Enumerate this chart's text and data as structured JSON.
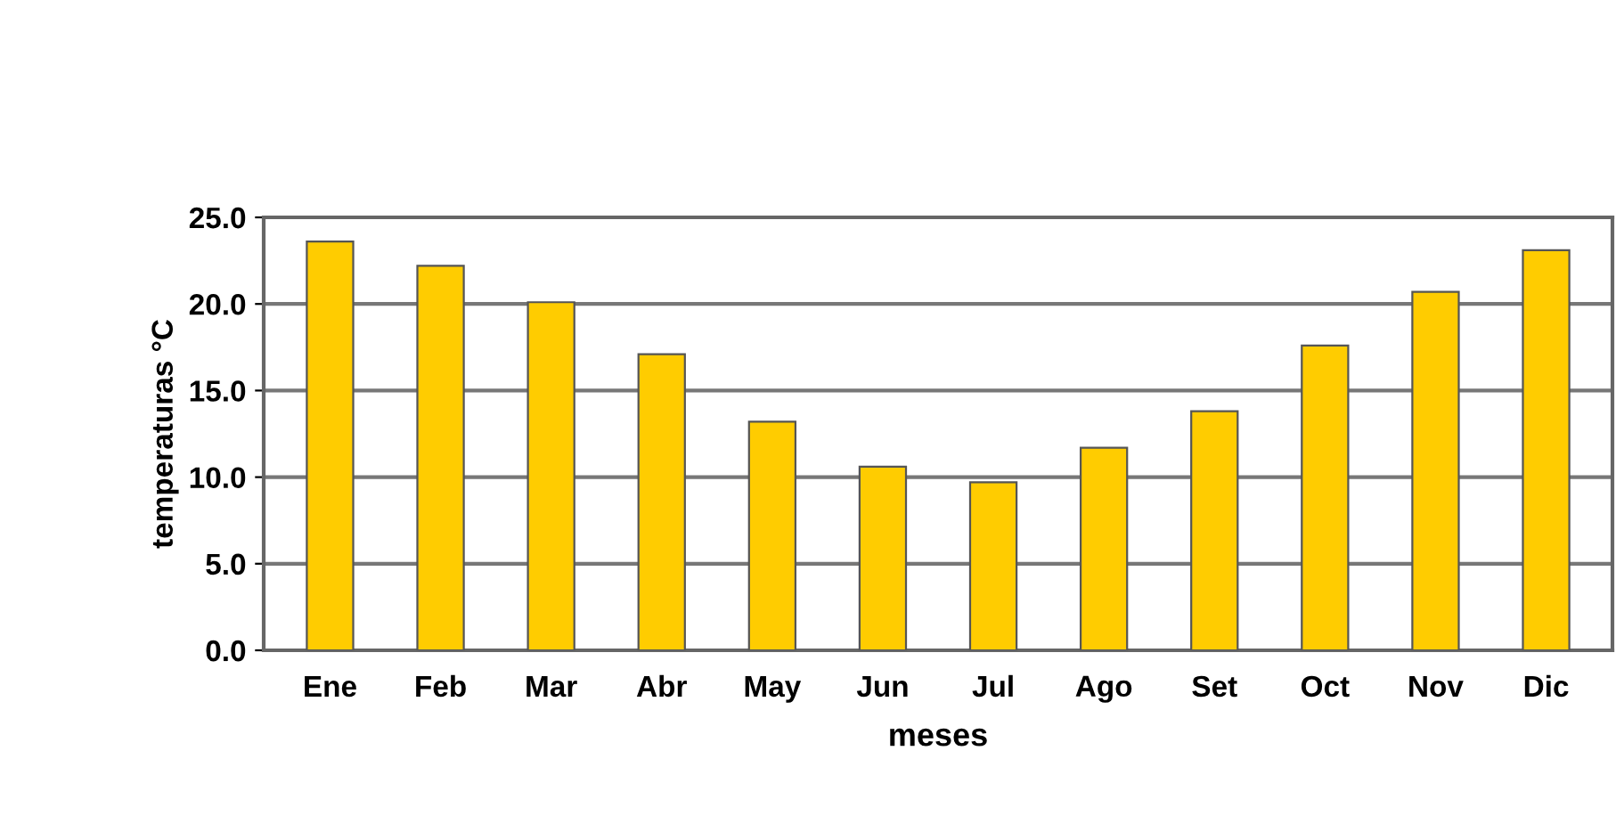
{
  "chart_data": {
    "type": "bar",
    "xlabel": "meses",
    "ylabel": "temperaturas °C",
    "categories": [
      "Ene",
      "Feb",
      "Mar",
      "Abr",
      "May",
      "Jun",
      "Jul",
      "Ago",
      "Set",
      "Oct",
      "Nov",
      "Dic"
    ],
    "values": [
      23.6,
      22.2,
      20.1,
      17.1,
      13.2,
      10.6,
      9.7,
      11.7,
      13.8,
      17.6,
      20.7,
      23.1
    ],
    "color": "#ffcc00",
    "ylim": [
      0,
      25
    ],
    "yticks": [
      {
        "value": 0,
        "label": "0.0"
      },
      {
        "value": 5,
        "label": "5.0"
      },
      {
        "value": 10,
        "label": "10.0"
      },
      {
        "value": 15,
        "label": "15.0"
      },
      {
        "value": 20,
        "label": "20.0"
      },
      {
        "value": 25,
        "label": "25.0"
      }
    ],
    "grid": "y",
    "legend": false
  }
}
